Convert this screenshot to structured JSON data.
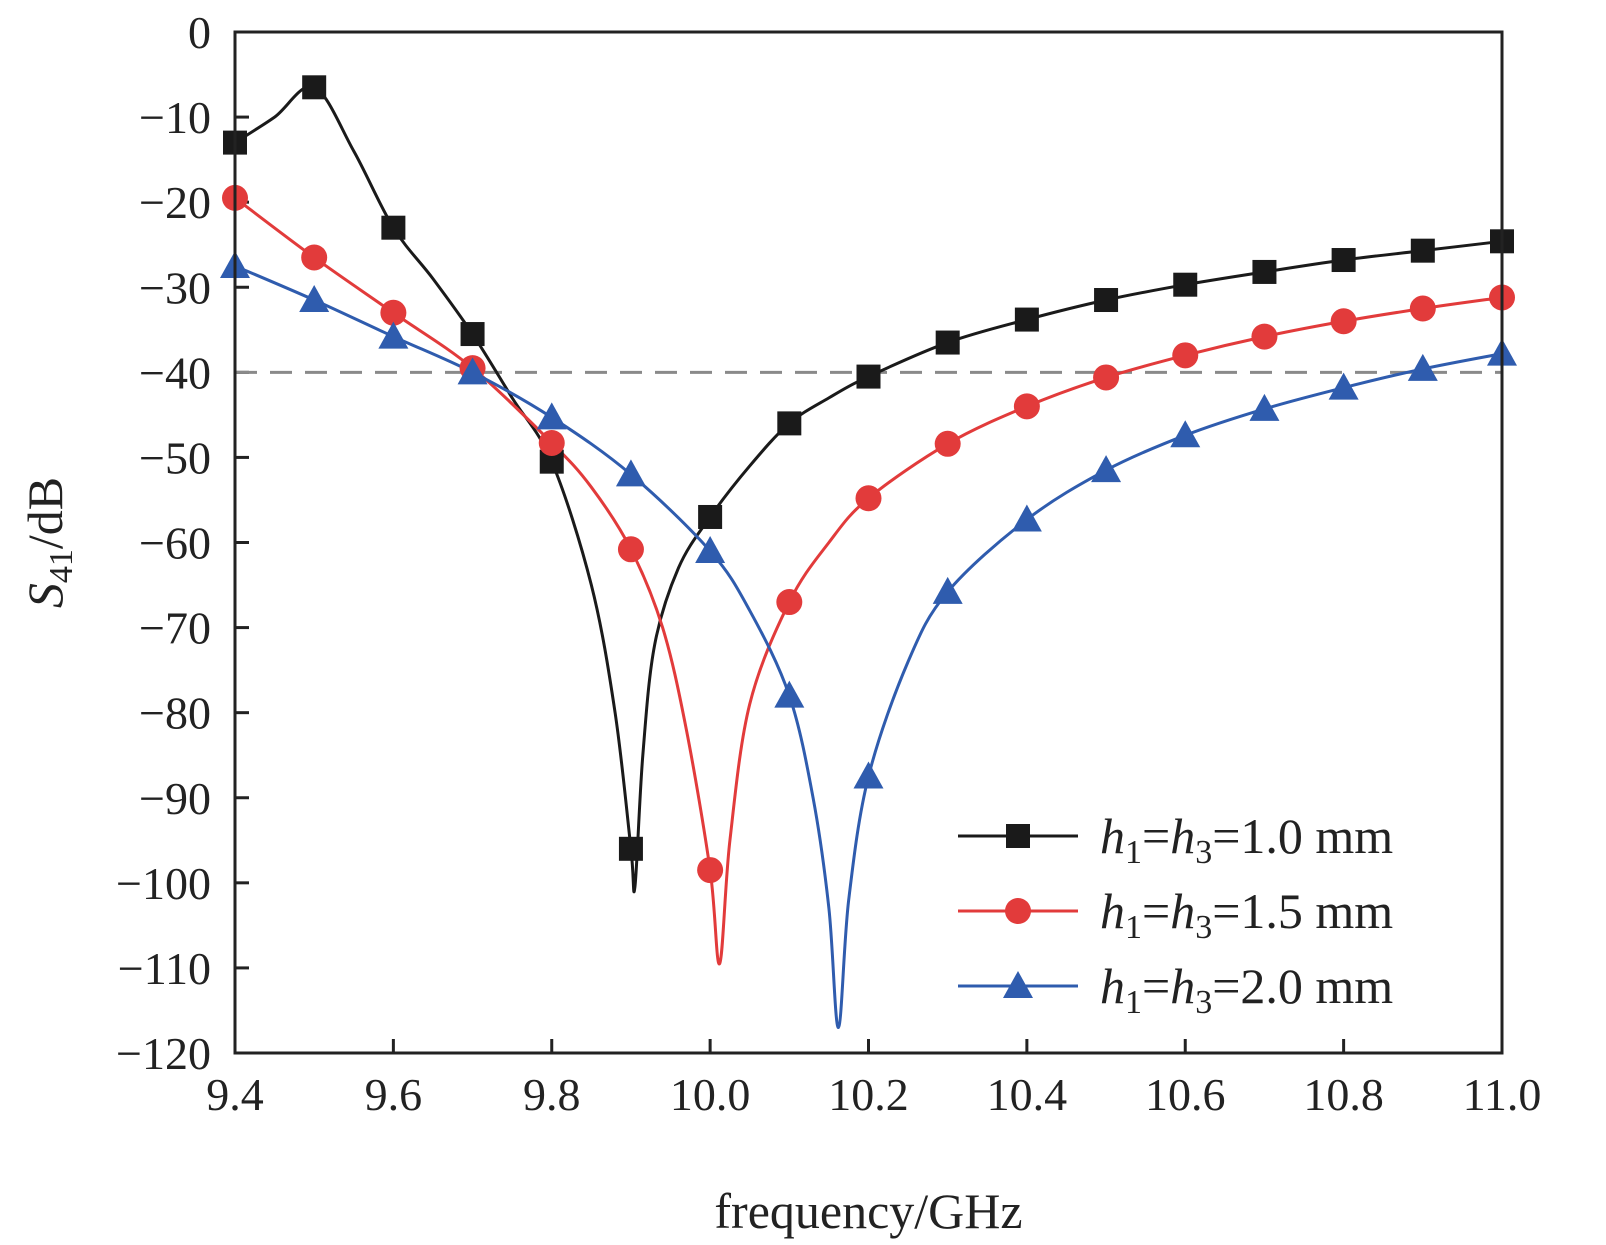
{
  "chart_data": {
    "type": "line",
    "title": "",
    "xlabel": "frequency/GHz",
    "ylabel": {
      "main": "S",
      "sub": "41",
      "unit": "/dB"
    },
    "xlim": [
      9.4,
      11.0
    ],
    "ylim": [
      -120,
      0
    ],
    "xticks": [
      9.4,
      9.6,
      9.8,
      10.0,
      10.2,
      10.4,
      10.6,
      10.8,
      11.0
    ],
    "xtick_labels": [
      "9.4",
      "9.6",
      "9.8",
      "10.0",
      "10.2",
      "10.4",
      "10.6",
      "10.8",
      "11.0"
    ],
    "yticks": [
      0,
      -10,
      -20,
      -30,
      -40,
      -50,
      -60,
      -70,
      -80,
      -90,
      -100,
      -110,
      -120
    ],
    "ytick_labels": [
      "0",
      "−10",
      "−20",
      "−30",
      "−40",
      "−50",
      "−60",
      "−70",
      "−80",
      "−90",
      "−100",
      "−110",
      "−120"
    ],
    "grid": false,
    "legend_position": "bottom-right",
    "reference_line": {
      "y": -40,
      "style": "dashed",
      "color": "#8a8a8a"
    },
    "series": [
      {
        "name": "h1=h3=1.0 mm",
        "label": {
          "h": "h",
          "sub1": "1",
          "eq1": "=",
          "sub3": "3",
          "eq2": "=",
          "value": "1.0 mm"
        },
        "color": "#1a1a1a",
        "marker": "square",
        "x": [
          9.4,
          9.5,
          9.6,
          9.7,
          9.8,
          9.9,
          10.0,
          10.1,
          10.2,
          10.3,
          10.4,
          10.5,
          10.6,
          10.7,
          10.8,
          10.9,
          11.0
        ],
        "y": [
          -13,
          -6.5,
          -23,
          -35.5,
          -50.5,
          -96,
          -57,
          -46,
          -40.5,
          -36.5,
          -33.8,
          -31.5,
          -29.7,
          -28.2,
          -26.8,
          -25.7,
          -24.6
        ],
        "curve": [
          [
            9.4,
            -13
          ],
          [
            9.45,
            -10
          ],
          [
            9.5,
            -6.5
          ],
          [
            9.55,
            -14
          ],
          [
            9.6,
            -23
          ],
          [
            9.65,
            -29
          ],
          [
            9.7,
            -35.5
          ],
          [
            9.75,
            -43
          ],
          [
            9.8,
            -50.5
          ],
          [
            9.85,
            -65
          ],
          [
            9.88,
            -80
          ],
          [
            9.9,
            -96
          ],
          [
            9.905,
            -100.5
          ],
          [
            9.915,
            -85
          ],
          [
            9.93,
            -72
          ],
          [
            9.96,
            -63
          ],
          [
            10.0,
            -57
          ],
          [
            10.05,
            -51
          ],
          [
            10.1,
            -46
          ],
          [
            10.15,
            -43
          ],
          [
            10.2,
            -40.5
          ],
          [
            10.3,
            -36.5
          ],
          [
            10.4,
            -33.8
          ],
          [
            10.5,
            -31.5
          ],
          [
            10.6,
            -29.7
          ],
          [
            10.7,
            -28.2
          ],
          [
            10.8,
            -26.8
          ],
          [
            10.9,
            -25.7
          ],
          [
            11.0,
            -24.6
          ]
        ]
      },
      {
        "name": "h1=h3=1.5 mm",
        "label": {
          "h": "h",
          "sub1": "1",
          "eq1": "=",
          "sub3": "3",
          "eq2": "=",
          "value": "1.5 mm"
        },
        "color": "#e23b3b",
        "marker": "circle",
        "x": [
          9.4,
          9.5,
          9.6,
          9.7,
          9.8,
          9.9,
          10.0,
          10.1,
          10.2,
          10.3,
          10.4,
          10.5,
          10.6,
          10.7,
          10.8,
          10.9,
          11.0
        ],
        "y": [
          -19.5,
          -26.5,
          -33,
          -39.5,
          -48.3,
          -60.8,
          -98.5,
          -67,
          -54.8,
          -48.4,
          -44,
          -40.6,
          -38,
          -35.8,
          -34,
          -32.5,
          -31.2
        ],
        "curve": [
          [
            9.4,
            -19.5
          ],
          [
            9.5,
            -26.5
          ],
          [
            9.6,
            -33
          ],
          [
            9.7,
            -39.5
          ],
          [
            9.8,
            -48.3
          ],
          [
            9.85,
            -53.5
          ],
          [
            9.9,
            -60.8
          ],
          [
            9.94,
            -70
          ],
          [
            9.97,
            -82
          ],
          [
            10.0,
            -98.5
          ],
          [
            10.012,
            -109.5
          ],
          [
            10.025,
            -95
          ],
          [
            10.05,
            -79
          ],
          [
            10.1,
            -67
          ],
          [
            10.15,
            -60
          ],
          [
            10.2,
            -54.8
          ],
          [
            10.3,
            -48.4
          ],
          [
            10.4,
            -44
          ],
          [
            10.5,
            -40.6
          ],
          [
            10.6,
            -38
          ],
          [
            10.7,
            -35.8
          ],
          [
            10.8,
            -34
          ],
          [
            10.9,
            -32.5
          ],
          [
            11.0,
            -31.2
          ]
        ]
      },
      {
        "name": "h1=h3=2.0 mm",
        "label": {
          "h": "h",
          "sub1": "1",
          "eq1": "=",
          "sub3": "3",
          "eq2": "=",
          "value": "2.0 mm"
        },
        "color": "#2f5cae",
        "marker": "triangle",
        "x": [
          9.4,
          9.5,
          9.6,
          9.7,
          9.8,
          9.9,
          10.0,
          10.1,
          10.2,
          10.3,
          10.4,
          10.5,
          10.6,
          10.7,
          10.8,
          10.9,
          11.0
        ],
        "y": [
          -27.5,
          -31.5,
          -35.8,
          -40,
          -45.3,
          -52,
          -61,
          -78,
          -87.5,
          -65.8,
          -57.3,
          -51.5,
          -47.4,
          -44.3,
          -41.8,
          -39.6,
          -37.8
        ],
        "curve": [
          [
            9.4,
            -27.5
          ],
          [
            9.5,
            -31.5
          ],
          [
            9.6,
            -35.8
          ],
          [
            9.7,
            -40
          ],
          [
            9.8,
            -45.3
          ],
          [
            9.9,
            -52
          ],
          [
            10.0,
            -61
          ],
          [
            10.05,
            -68
          ],
          [
            10.1,
            -78
          ],
          [
            10.13,
            -90
          ],
          [
            10.15,
            -103
          ],
          [
            10.162,
            -117
          ],
          [
            10.175,
            -102
          ],
          [
            10.2,
            -87.5
          ],
          [
            10.25,
            -74
          ],
          [
            10.3,
            -65.8
          ],
          [
            10.4,
            -57.3
          ],
          [
            10.5,
            -51.5
          ],
          [
            10.6,
            -47.4
          ],
          [
            10.7,
            -44.3
          ],
          [
            10.8,
            -41.8
          ],
          [
            10.9,
            -39.6
          ],
          [
            11.0,
            -37.8
          ]
        ]
      }
    ]
  }
}
